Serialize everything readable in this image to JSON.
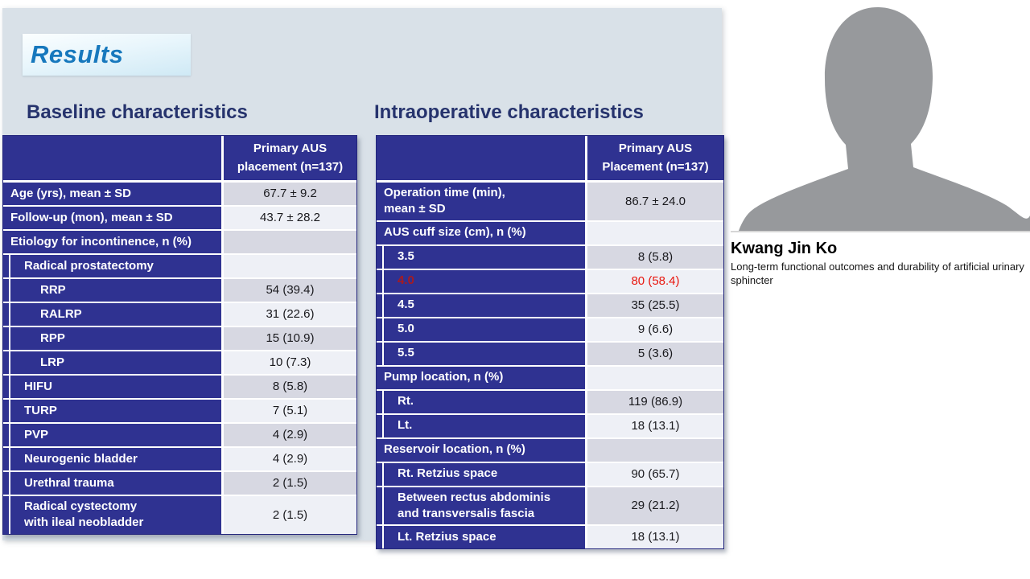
{
  "colors": {
    "navy": "#2f3291",
    "row_dark": "#d7d8e2",
    "row_light": "#eef0f6",
    "red": "#e8150d",
    "red_dark": "#a61b22",
    "slide_bg": "#d9e1e8",
    "title_blue": "#1778bd",
    "heading_navy": "#26336d",
    "silhouette_gray": "#97999c"
  },
  "slide": {
    "title": "Results",
    "baseline_table": {
      "heading": "Baseline characteristics",
      "column_header": "Primary AUS\nplacement (n=137)",
      "rows": [
        {
          "label": "Age (yrs), mean ± SD",
          "value": "67.7 ± 9.2",
          "indent": 0
        },
        {
          "label": "Follow-up (mon), mean ± SD",
          "value": "43.7 ± 28.2",
          "indent": 0
        },
        {
          "label": "Etiology for incontinence, n (%)",
          "value": "",
          "indent": 0
        },
        {
          "label": "Radical prostatectomy",
          "value": "",
          "indent": 1
        },
        {
          "label": "RRP",
          "value": "54 (39.4)",
          "indent": 2
        },
        {
          "label": "RALRP",
          "value": "31 (22.6)",
          "indent": 2
        },
        {
          "label": "RPP",
          "value": "15 (10.9)",
          "indent": 2
        },
        {
          "label": "LRP",
          "value": "10 (7.3)",
          "indent": 2
        },
        {
          "label": "HIFU",
          "value": "8 (5.8)",
          "indent": 1
        },
        {
          "label": "TURP",
          "value": "7 (5.1)",
          "indent": 1
        },
        {
          "label": "PVP",
          "value": "4 (2.9)",
          "indent": 1
        },
        {
          "label": "Neurogenic bladder",
          "value": "4 (2.9)",
          "indent": 1
        },
        {
          "label": "Urethral trauma",
          "value": "2 (1.5)",
          "indent": 1
        },
        {
          "label": "Radical cystectomy\nwith ileal neobladder",
          "value": "2 (1.5)",
          "indent": 1
        }
      ]
    },
    "intraop_table": {
      "heading": "Intraoperative characteristics",
      "column_header": "Primary AUS\nPlacement (n=137)",
      "rows": [
        {
          "label": "Operation time (min),\nmean ± SD",
          "value": "86.7 ± 24.0",
          "indent": 0
        },
        {
          "label": "AUS cuff size (cm), n (%)",
          "value": "",
          "indent": 0
        },
        {
          "label": "3.5",
          "value": "8 (5.8)",
          "indent": 1
        },
        {
          "label": "4.0",
          "value": "80 (58.4)",
          "indent": 1,
          "red": true
        },
        {
          "label": "4.5",
          "value": "35 (25.5)",
          "indent": 1
        },
        {
          "label": "5.0",
          "value": "9 (6.6)",
          "indent": 1
        },
        {
          "label": "5.5",
          "value": "5 (3.6)",
          "indent": 1
        },
        {
          "label": "Pump location, n (%)",
          "value": "",
          "indent": 0
        },
        {
          "label": "Rt.",
          "value": "119 (86.9)",
          "indent": 1
        },
        {
          "label": "Lt.",
          "value": "18 (13.1)",
          "indent": 1
        },
        {
          "label": "Reservoir location, n (%)",
          "value": "",
          "indent": 0
        },
        {
          "label": "Rt. Retzius space",
          "value": "90 (65.7)",
          "indent": 1
        },
        {
          "label": "Between rectus abdominis\nand transversalis fascia",
          "value": "29 (21.2)",
          "indent": 1
        },
        {
          "label": "Lt. Retzius space",
          "value": "18 (13.1)",
          "indent": 1
        }
      ]
    }
  },
  "speaker": {
    "name": "Kwang Jin Ko",
    "description": "Long-term functional outcomes and durability of artificial urinary sphincter"
  }
}
